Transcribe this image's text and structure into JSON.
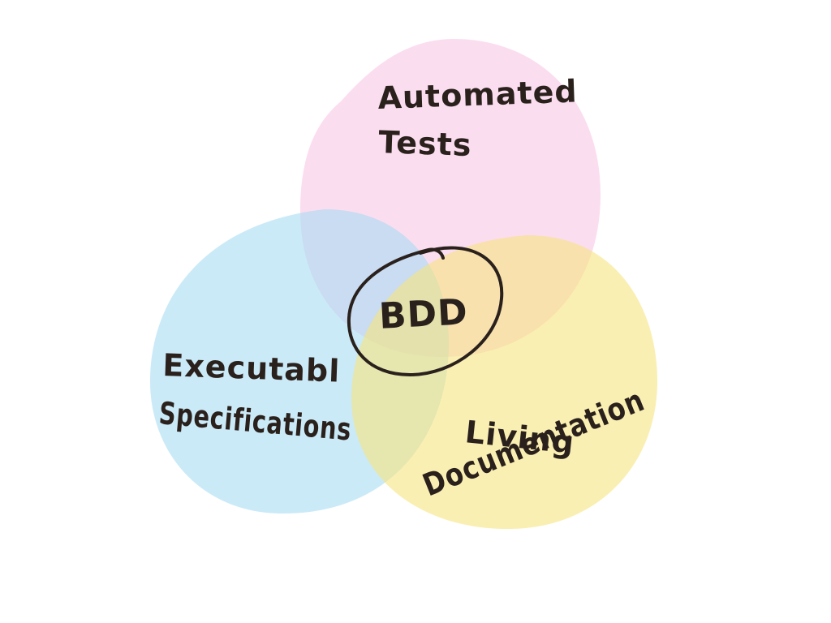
{
  "diagram": {
    "center_label": "BDD",
    "circles": [
      {
        "id": "automated-tests",
        "lines": [
          "Automated",
          "Tests"
        ],
        "color": "#f9c6e6"
      },
      {
        "id": "executable-specifications",
        "lines": [
          "Executabl",
          "Specifications"
        ],
        "color": "#a9dcf1"
      },
      {
        "id": "living-documentation",
        "lines": [
          "Living",
          "Documentation"
        ],
        "color": "#f7e47e"
      }
    ],
    "ring_color": "#2a211d",
    "background": "#ffffff"
  }
}
